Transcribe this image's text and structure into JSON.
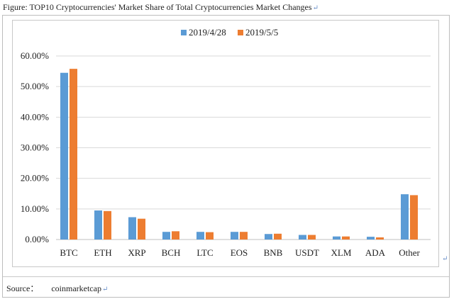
{
  "caption": {
    "text": "Figure: TOP10 Cryptocurrencies' Market Share of Total Cryptocurrencies Market Changes",
    "return_mark": "↵"
  },
  "source": {
    "label": "Source：",
    "value": "coinmarketcap",
    "return_mark": "↵"
  },
  "side_mark": "↵",
  "chart_data": {
    "type": "bar",
    "title": "",
    "xlabel": "",
    "ylabel": "",
    "categories": [
      "BTC",
      "ETH",
      "XRP",
      "BCH",
      "LTC",
      "EOS",
      "BNB",
      "USDT",
      "XLM",
      "ADA",
      "Other"
    ],
    "series": [
      {
        "name": "2019/4/28",
        "color": "#5b9bd5",
        "values": [
          54.5,
          9.5,
          7.3,
          2.5,
          2.5,
          2.5,
          1.8,
          1.5,
          1.0,
          0.9,
          14.8
        ]
      },
      {
        "name": "2019/5/5",
        "color": "#ed7d31",
        "values": [
          55.8,
          9.3,
          6.8,
          2.7,
          2.4,
          2.5,
          1.9,
          1.5,
          1.0,
          0.7,
          14.5
        ]
      }
    ],
    "ylim": [
      0,
      60
    ],
    "yticks": [
      0,
      10,
      20,
      30,
      40,
      50,
      60
    ],
    "ytick_labels": [
      "0.00%",
      "10.00%",
      "20.00%",
      "30.00%",
      "40.00%",
      "50.00%",
      "60.00%"
    ],
    "grid": true,
    "legend_position": "top-center"
  }
}
